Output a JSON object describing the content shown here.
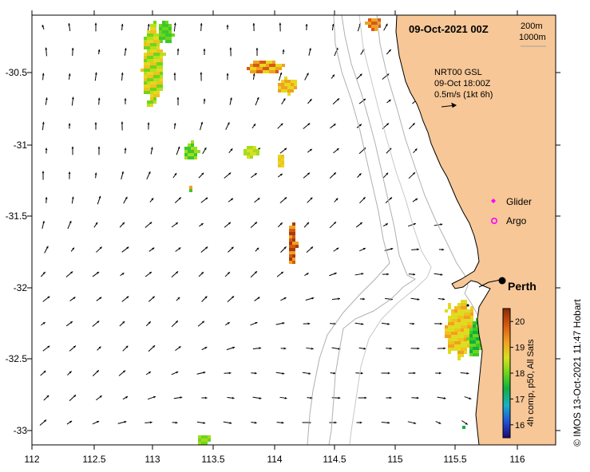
{
  "map": {
    "date_title": "09-Oct-2021 00Z",
    "isobaths": [
      "200m",
      "1000m"
    ],
    "current_info": [
      "NRT00 GSL",
      "09-Oct 18:00Z",
      "0.5m/s (1kt 6h)"
    ],
    "legend": [
      {
        "label": "Glider",
        "marker": "diamond",
        "color": "#ff00ff"
      },
      {
        "label": "Argo",
        "marker": "ring",
        "color": "#ff00ff"
      }
    ],
    "city": "Perth",
    "credit": "© IMOS 13-Oct-2021 11:47 Hobart",
    "colorbar": {
      "label": "4h comp, p50, All Sats",
      "min": 15.5,
      "max": 20.5,
      "ticks": [
        "20",
        "19",
        "18",
        "17",
        "16"
      ]
    },
    "x_ticks": [
      "112",
      "112.5",
      "113",
      "113.5",
      "114",
      "114.5",
      "115",
      "115.5",
      "116"
    ],
    "y_ticks": [
      "-30.5",
      "-31",
      "-31.5",
      "-32",
      "-32.5",
      "-33"
    ],
    "colors": {
      "land": "#f7c797",
      "ocean": "#ffffff",
      "isobath": "#b0b0b0",
      "coast": "#000000"
    }
  }
}
